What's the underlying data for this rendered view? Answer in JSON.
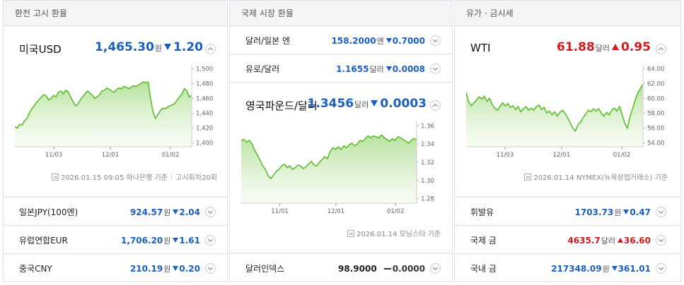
{
  "exchange": {
    "title": "환전 고시 환율",
    "main": {
      "label": "미국USD",
      "value": "1,465.30",
      "unit": "원",
      "change": "1.20",
      "direction": "down",
      "source": "2026.01.15 09:05 하나은행 기준",
      "source_extra": "고시회차20회",
      "chart": {
        "y_ticks": [
          "1,500",
          "1,480",
          "1,460",
          "1,440",
          "1,420",
          "1,400"
        ],
        "x_ticks": [
          "11/03",
          "12/01",
          "01/02"
        ]
      }
    },
    "rows": [
      {
        "label": "일본JPY(100엔)",
        "value": "924.57",
        "unit": "원",
        "change": "2.04",
        "direction": "down"
      },
      {
        "label": "유럽연합EUR",
        "value": "1,706.20",
        "unit": "원",
        "change": "1.61",
        "direction": "down"
      },
      {
        "label": "중국CNY",
        "value": "210.19",
        "unit": "원",
        "change": "0.20",
        "direction": "down"
      }
    ]
  },
  "intl": {
    "title": "국제 시장 환율",
    "top_rows": [
      {
        "label": "달러/일본 엔",
        "value": "158.2000",
        "unit": "엔",
        "change": "0.7000",
        "direction": "down"
      },
      {
        "label": "유로/달러",
        "value": "1.1655",
        "unit": "달러",
        "change": "0.0008",
        "direction": "down"
      }
    ],
    "main": {
      "label": "영국파운드/달러",
      "value": "1.3456",
      "unit": "달러",
      "change": "0.0003",
      "direction": "down",
      "source": "2026.01.14 모닝스타 기준",
      "chart": {
        "y_ticks": [
          "1.36",
          "1.34",
          "1.32",
          "1.30",
          "1.28"
        ],
        "x_ticks": [
          "11/01",
          "12/01",
          "01/02"
        ]
      }
    },
    "bottom_row": {
      "label": "달러인덱스",
      "value": "98.9000",
      "unit": "",
      "change": "0.0000",
      "direction": "flat"
    }
  },
  "commodity": {
    "title": "유가 · 금시세",
    "main": {
      "label": "WTI",
      "value": "61.88",
      "unit": "달러",
      "change": "0.95",
      "direction": "up",
      "source": "2026.01.14 NYMEX(뉴욕상업거래소) 기준",
      "chart": {
        "y_ticks": [
          "64.00",
          "62.00",
          "60.00",
          "58.00",
          "56.00",
          "54.00"
        ],
        "x_ticks": [
          "11/03",
          "12/01",
          "01/02"
        ]
      }
    },
    "rows": [
      {
        "label": "휘발유",
        "value": "1703.73",
        "unit": "원",
        "change": "0.47",
        "direction": "down"
      },
      {
        "label": "국제 금",
        "value": "4635.7",
        "unit": "달러",
        "change": "36.60",
        "direction": "up"
      },
      {
        "label": "국내 금",
        "value": "217348.09",
        "unit": "원",
        "change": "361.01",
        "direction": "down"
      }
    ]
  },
  "chart_data": [
    {
      "type": "area",
      "ylim": [
        1395,
        1505
      ],
      "x_tick_labels": [
        "11/03",
        "12/01",
        "01/02"
      ],
      "series": [
        {
          "values": [
            1422,
            1420,
            1425,
            1424,
            1430,
            1433,
            1440,
            1446,
            1450,
            1455,
            1458,
            1462,
            1465,
            1463,
            1458,
            1460,
            1464,
            1462,
            1468,
            1470,
            1466,
            1471,
            1469,
            1462,
            1456,
            1450,
            1452,
            1458,
            1462,
            1466,
            1470,
            1467,
            1464,
            1460,
            1462,
            1465,
            1470,
            1471,
            1474,
            1472,
            1470,
            1468,
            1472,
            1474,
            1473,
            1476,
            1475,
            1473,
            1475,
            1477,
            1476,
            1478,
            1480,
            1482,
            1481,
            1482,
            1460,
            1442,
            1433,
            1438,
            1443,
            1447,
            1446,
            1448,
            1450,
            1451,
            1453,
            1458,
            1462,
            1466,
            1473,
            1470,
            1462,
            1464
          ]
        }
      ]
    },
    {
      "type": "area",
      "ylim": [
        1.275,
        1.365
      ],
      "x_tick_labels": [
        "11/01",
        "12/01",
        "01/02"
      ],
      "series": [
        {
          "values": [
            1.344,
            1.345,
            1.342,
            1.344,
            1.34,
            1.333,
            1.328,
            1.322,
            1.316,
            1.312,
            1.305,
            1.302,
            1.306,
            1.31,
            1.312,
            1.316,
            1.318,
            1.314,
            1.316,
            1.312,
            1.314,
            1.317,
            1.316,
            1.313,
            1.315,
            1.318,
            1.321,
            1.317,
            1.316,
            1.32,
            1.323,
            1.326,
            1.324,
            1.332,
            1.336,
            1.334,
            1.337,
            1.334,
            1.338,
            1.336,
            1.339,
            1.341,
            1.338,
            1.34,
            1.344,
            1.343,
            1.346,
            1.349,
            1.347,
            1.349,
            1.348,
            1.347,
            1.35,
            1.347,
            1.345,
            1.343,
            1.346,
            1.344,
            1.348,
            1.347,
            1.345,
            1.343,
            1.341,
            1.344,
            1.346,
            1.345
          ]
        }
      ]
    },
    {
      "type": "area",
      "ylim": [
        53.5,
        64.5
      ],
      "x_tick_labels": [
        "11/03",
        "12/01",
        "01/02"
      ],
      "series": [
        {
          "values": [
            60.8,
            59.5,
            59.0,
            59.4,
            59.8,
            60.2,
            59.9,
            60.3,
            59.6,
            60.0,
            59.2,
            58.7,
            58.4,
            58.9,
            59.4,
            59.0,
            59.3,
            58.8,
            59.0,
            58.5,
            58.9,
            58.2,
            58.6,
            58.9,
            58.4,
            58.7,
            58.4,
            58.9,
            59.1,
            58.5,
            58.8,
            58.0,
            58.3,
            57.8,
            58.2,
            57.6,
            58.1,
            58.4,
            58.0,
            57.4,
            56.7,
            56.0,
            55.6,
            56.5,
            56.8,
            57.4,
            57.9,
            58.4,
            58.2,
            58.6,
            58.3,
            58.6,
            58.0,
            57.6,
            58.1,
            57.8,
            58.4,
            58.7,
            58.3,
            58.9,
            57.8,
            56.6,
            56.0,
            57.5,
            58.6,
            59.8,
            60.7,
            61.3,
            61.9
          ]
        }
      ]
    }
  ]
}
